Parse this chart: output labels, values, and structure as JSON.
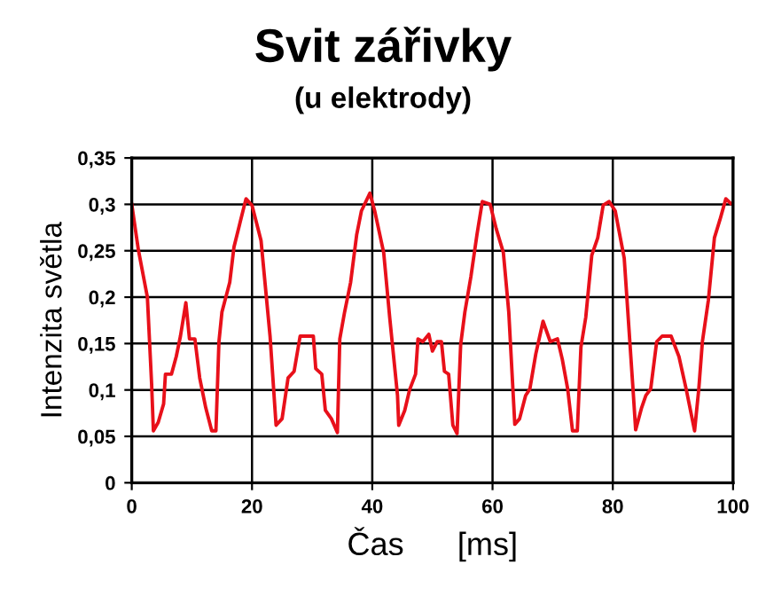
{
  "chart_data": {
    "type": "line",
    "title": "Svit zářivky",
    "subtitle": "(u elektrody)",
    "xlabel": "Čas      [ms]",
    "ylabel": "Intenzita světla",
    "x": [
      0,
      1.1,
      2.6,
      3.3,
      3.6,
      4.4,
      5.3,
      5.6,
      6.6,
      7.4,
      8.1,
      9.0,
      9.6,
      10.5,
      11.3,
      12.3,
      13.3,
      14.0,
      14.5,
      15.0,
      16.3,
      17.0,
      18.0,
      19.0,
      20.0,
      21.5,
      23.0,
      24.0,
      25.0,
      26.0,
      27.0,
      28.0,
      30.2,
      30.6,
      31.6,
      32.2,
      33.2,
      34.2,
      34.6,
      35.4,
      36.4,
      37.4,
      38.2,
      39.6,
      40.4,
      41.9,
      42.9,
      44.2,
      44.4,
      45.4,
      46.2,
      47.2,
      47.6,
      48.4,
      49.4,
      50.0,
      50.8,
      51.5,
      52.0,
      52.7,
      53.4,
      54.1,
      54.7,
      55.4,
      56.4,
      57.4,
      58.3,
      59.6,
      60.6,
      61.8,
      62.7,
      63.7,
      64.5,
      65.5,
      66.2,
      67.2,
      68.4,
      69.6,
      70.8,
      71.6,
      72.5,
      73.3,
      74.1,
      74.7,
      75.5,
      76.5,
      77.5,
      78.4,
      79.4,
      80.4,
      81.9,
      83.3,
      83.8,
      84.8,
      85.5,
      86.3,
      87.3,
      88.2,
      89.7,
      91.0,
      92.2,
      93.6,
      94.3,
      94.9,
      95.9,
      96.9,
      97.8,
      98.8,
      99.6
    ],
    "series": [
      {
        "color": "#e8101a",
        "values": [
          0.3,
          0.251,
          0.2,
          0.107,
          0.056,
          0.065,
          0.085,
          0.117,
          0.117,
          0.136,
          0.158,
          0.194,
          0.155,
          0.155,
          0.113,
          0.081,
          0.056,
          0.056,
          0.152,
          0.184,
          0.216,
          0.254,
          0.28,
          0.306,
          0.299,
          0.261,
          0.158,
          0.062,
          0.069,
          0.113,
          0.12,
          0.158,
          0.158,
          0.123,
          0.117,
          0.078,
          0.069,
          0.054,
          0.155,
          0.184,
          0.216,
          0.267,
          0.293,
          0.312,
          0.293,
          0.248,
          0.178,
          0.094,
          0.062,
          0.078,
          0.1,
          0.117,
          0.155,
          0.152,
          0.16,
          0.142,
          0.152,
          0.152,
          0.12,
          0.117,
          0.062,
          0.053,
          0.149,
          0.184,
          0.222,
          0.267,
          0.303,
          0.3,
          0.274,
          0.248,
          0.184,
          0.063,
          0.069,
          0.094,
          0.101,
          0.139,
          0.174,
          0.152,
          0.155,
          0.133,
          0.101,
          0.056,
          0.056,
          0.146,
          0.178,
          0.245,
          0.264,
          0.299,
          0.303,
          0.293,
          0.242,
          0.107,
          0.057,
          0.081,
          0.094,
          0.101,
          0.152,
          0.158,
          0.158,
          0.136,
          0.101,
          0.056,
          0.101,
          0.152,
          0.197,
          0.264,
          0.283,
          0.306,
          0.301
        ]
      }
    ],
    "xlim": [
      0,
      100
    ],
    "xticks": [
      0,
      20,
      40,
      60,
      80,
      100
    ],
    "ylim": [
      0,
      0.35
    ],
    "yticks": [
      0,
      {
        "value": 0.05,
        "label": "0,05"
      },
      {
        "value": 0.1,
        "label": "0,1"
      },
      {
        "value": 0.15,
        "label": "0,15"
      },
      {
        "value": 0.2,
        "label": "0,2"
      },
      {
        "value": 0.25,
        "label": "0,25"
      },
      {
        "value": 0.3,
        "label": "0,3"
      },
      {
        "value": 0.35,
        "label": "0,35"
      }
    ],
    "grid": true,
    "marker": "none",
    "line_style": "solid",
    "legend": false
  }
}
